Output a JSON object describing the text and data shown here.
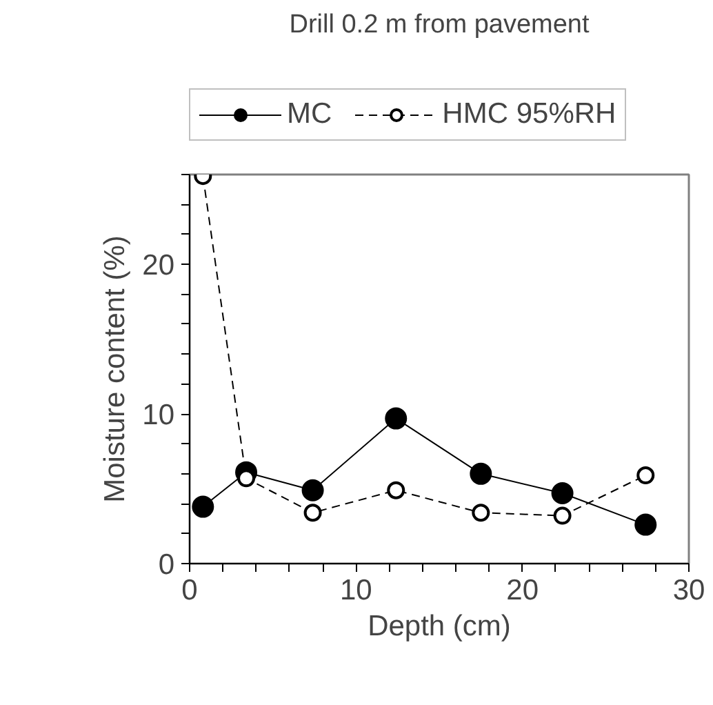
{
  "chart_data": {
    "type": "line",
    "title": "Drill 0.2 m from pavement",
    "xlabel": "Depth (cm)",
    "ylabel": "Moisture content (%)",
    "x": [
      0.8,
      3.4,
      7.4,
      12.4,
      17.5,
      22.4,
      27.4
    ],
    "series": [
      {
        "name": "MC",
        "color": "#000000",
        "line_style": "solid",
        "values": [
          3.8,
          6.1,
          4.9,
          9.7,
          6.0,
          4.7,
          2.6
        ]
      },
      {
        "name": "HMC 95%RH",
        "color": "#000000",
        "line_style": "dashed",
        "values": [
          25.9,
          5.7,
          3.4,
          4.9,
          3.4,
          3.2,
          5.9
        ]
      }
    ],
    "marker": "circle",
    "legend": "top",
    "grid": false,
    "xlim": [
      0,
      30
    ],
    "ylim": [
      0,
      26
    ],
    "xticks": [
      0,
      {
        "value": 2,
        "label": null
      },
      {
        "value": 4,
        "label": null
      },
      {
        "value": 6,
        "label": null
      },
      {
        "value": 8,
        "label": null
      },
      10,
      {
        "value": 12,
        "label": null
      },
      {
        "value": 14,
        "label": null
      },
      {
        "value": 16,
        "label": null
      },
      {
        "value": 18,
        "label": null
      },
      20,
      {
        "value": 22,
        "label": null
      },
      {
        "value": 24,
        "label": null
      },
      {
        "value": 26,
        "label": null
      },
      {
        "value": 28,
        "label": null
      },
      30
    ],
    "yticks": [
      0,
      {
        "value": 2,
        "label": null
      },
      {
        "value": 4,
        "label": null
      },
      {
        "value": 6,
        "label": null
      },
      {
        "value": 8,
        "label": null
      },
      10,
      {
        "value": 12,
        "label": null
      },
      {
        "value": 14,
        "label": null
      },
      {
        "value": 16,
        "label": null
      },
      {
        "value": 18,
        "label": null
      },
      20,
      {
        "value": 22,
        "label": null
      },
      {
        "value": 24,
        "label": null
      },
      {
        "value": 26,
        "label": null
      }
    ]
  }
}
